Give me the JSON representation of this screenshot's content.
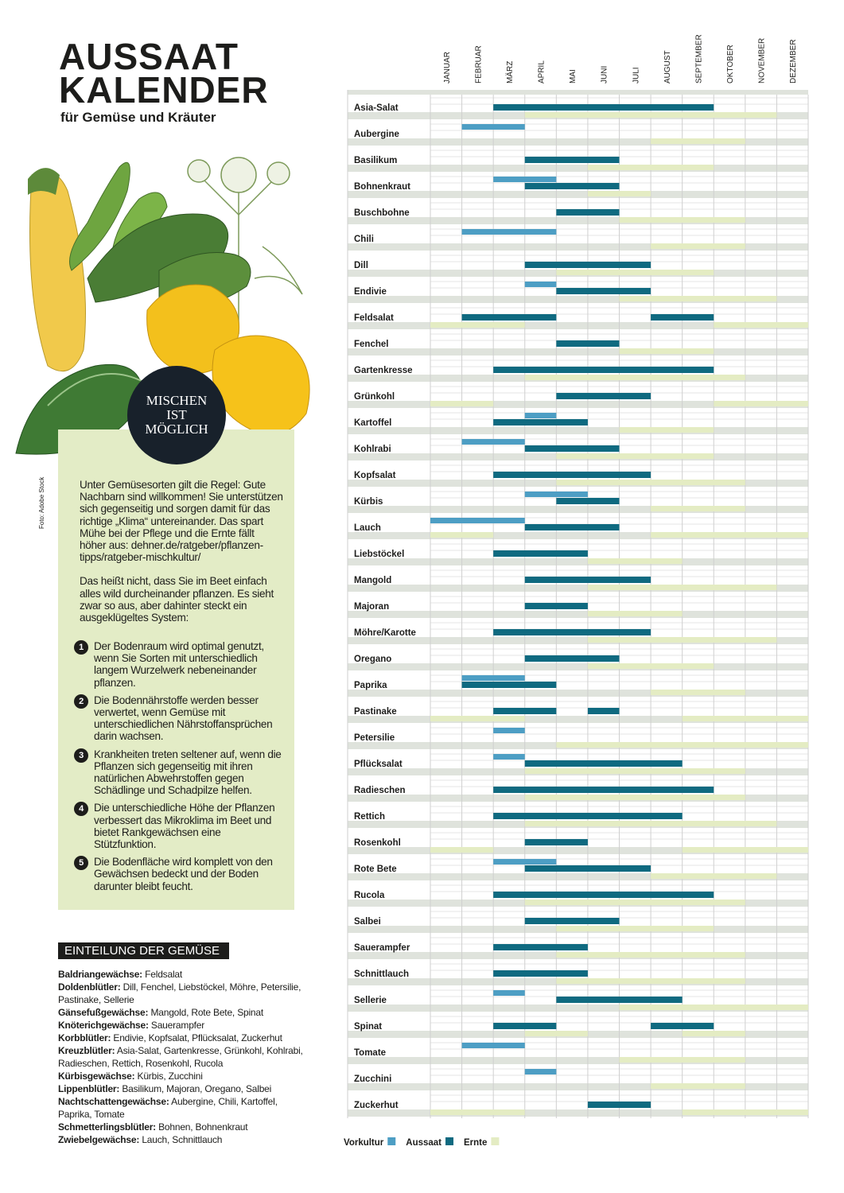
{
  "header": {
    "title_line1": "AUSSAAT",
    "title_line2": "KALENDER",
    "subtitle": "für Gemüse und Kräuter"
  },
  "badge": [
    "MISCHEN",
    "IST",
    "MÖGLICH"
  ],
  "photo_credit": "Foto: Adobe Stock",
  "intro": [
    "Unter Gemüsesorten gilt die Regel: Gute Nachbarn sind willkommen! Sie unterstützen sich gegenseitig und sorgen damit für das richtige „Klima“ untereinander. Das spart Mühe bei der Pflege und die Ernte fällt höher aus: dehner.de/ratgeber/pflanzen-tipps/ratgeber-mischkultur/",
    "Das heißt nicht, dass Sie im Beet einfach alles wild durcheinander pflanzen. Es sieht zwar so aus, aber dahinter steckt ein ausgeklügeltes System:"
  ],
  "list": [
    {
      "number": "1",
      "text": "Der Bodenraum wird optimal genutzt, wenn Sie Sorten mit unterschiedlich langem Wurzelwerk nebeneinander pflanzen."
    },
    {
      "number": "2",
      "text": "Die Bodennährstoffe werden besser verwertet, wenn Gemüse mit unterschiedlichen Nährstoffansprüchen darin wachsen."
    },
    {
      "number": "3",
      "text": "Krankheiten treten seltener auf, wenn die Pflanzen sich gegenseitig mit ihren natürlichen Abwehrstoffen gegen Schädlinge und Schadpilze helfen."
    },
    {
      "number": "4",
      "text": "Die unterschiedliche Höhe der Pflanzen verbessert das Mikroklima im Beet und bietet Rankgewächsen eine Stützfunktion."
    },
    {
      "number": "5",
      "text": "Die Bodenfläche wird komplett von den Gewächsen bedeckt und der Boden darunter bleibt feucht."
    }
  ],
  "classification": {
    "title": "EINTEILUNG DER GEMÜSE",
    "items": [
      {
        "family": "Baldriangewächse:",
        "members": "Feldsalat"
      },
      {
        "family": "Doldenblütler:",
        "members": "Dill, Fenchel, Liebstöckel, Möhre, Petersilie, Pastinake, Sellerie"
      },
      {
        "family": "Gänsefußgewächse:",
        "members": "Mangold, Rote Bete, Spinat"
      },
      {
        "family": "Knöterichgewächse:",
        "members": "Sauerampfer"
      },
      {
        "family": "Korbblütler:",
        "members": "Endivie, Kopfsalat, Pflücksalat, Zuckerhut"
      },
      {
        "family": "Kreuzblütler:",
        "members": "Asia-Salat, Gartenkresse, Grünkohl, Kohlrabi, Radieschen, Rettich, Rosenkohl, Rucola"
      },
      {
        "family": "Kürbisgewächse:",
        "members": "Kürbis, Zucchini"
      },
      {
        "family": "Lippenblütler:",
        "members": "Basilikum, Majoran, Oregano, Salbei"
      },
      {
        "family": "Nachtschattengewächse:",
        "members": "Aubergine, Chili, Kartoffel, Paprika, Tomate"
      },
      {
        "family": "Schmetterlingsblütler:",
        "members": "Bohnen, Bohnenkraut"
      },
      {
        "family": "Zwiebelgewächse:",
        "members": "Lauch, Schnittlauch"
      }
    ]
  },
  "calendar": {
    "months": [
      "JANUAR",
      "FEBRUAR",
      "MÄRZ",
      "APRIL",
      "MAI",
      "JUNI",
      "JULI",
      "AUGUST",
      "SEPTEMBER",
      "OKTOBER",
      "NOVEMBER",
      "DEZEMBER"
    ],
    "legend": [
      {
        "name": "Vorkultur",
        "color": "#4d9ec4"
      },
      {
        "name": "Aussaat",
        "color": "#0f6a80"
      },
      {
        "name": "Ernte",
        "color": "#e4ecc3"
      }
    ],
    "rows": [
      {
        "name": "Asia-Salat",
        "phases": [
          [],
          [
            [
              2,
              9
            ]
          ],
          [
            [
              3,
              11
            ]
          ]
        ]
      },
      {
        "name": "Aubergine",
        "phases": [
          [
            [
              1,
              3
            ]
          ],
          [],
          [
            [
              7,
              10
            ]
          ]
        ]
      },
      {
        "name": "Basilikum",
        "phases": [
          [],
          [
            [
              3,
              6
            ]
          ],
          [
            [
              5,
              9
            ]
          ]
        ]
      },
      {
        "name": "Bohnenkraut",
        "phases": [
          [
            [
              2,
              4
            ]
          ],
          [
            [
              3,
              6
            ]
          ],
          [
            [
              5,
              7
            ]
          ]
        ]
      },
      {
        "name": "Buschbohne",
        "phases": [
          [],
          [
            [
              4,
              6
            ]
          ],
          [
            [
              6,
              10
            ]
          ]
        ]
      },
      {
        "name": "Chili",
        "phases": [
          [
            [
              1,
              4
            ]
          ],
          [],
          [
            [
              7,
              10
            ]
          ]
        ]
      },
      {
        "name": "Dill",
        "phases": [
          [],
          [
            [
              3,
              7
            ]
          ],
          [
            [
              4,
              9
            ]
          ]
        ]
      },
      {
        "name": "Endivie",
        "phases": [
          [
            [
              3,
              4
            ]
          ],
          [
            [
              4,
              7
            ]
          ],
          [
            [
              6,
              11
            ]
          ]
        ]
      },
      {
        "name": "Feldsalat",
        "phases": [
          [],
          [
            [
              1,
              4
            ],
            [
              7,
              9
            ]
          ],
          [
            [
              0,
              3
            ],
            [
              9,
              12
            ]
          ]
        ]
      },
      {
        "name": "Fenchel",
        "phases": [
          [],
          [
            [
              4,
              6
            ]
          ],
          [
            [
              6,
              9
            ]
          ]
        ]
      },
      {
        "name": "Gartenkresse",
        "phases": [
          [],
          [
            [
              2,
              9
            ]
          ],
          [
            [
              3,
              10
            ]
          ]
        ]
      },
      {
        "name": "Grünkohl",
        "phases": [
          [],
          [
            [
              4,
              7
            ]
          ],
          [
            [
              0,
              2
            ],
            [
              9,
              12
            ]
          ]
        ]
      },
      {
        "name": "Kartoffel",
        "phases": [
          [
            [
              3,
              4
            ]
          ],
          [
            [
              2,
              5
            ]
          ],
          [
            [
              6,
              9
            ]
          ]
        ]
      },
      {
        "name": "Kohlrabi",
        "phases": [
          [
            [
              1,
              3
            ]
          ],
          [
            [
              3,
              6
            ]
          ],
          [
            [
              4,
              9
            ]
          ]
        ]
      },
      {
        "name": "Kopfsalat",
        "phases": [
          [],
          [
            [
              2,
              7
            ]
          ],
          [
            [
              4,
              10
            ]
          ]
        ]
      },
      {
        "name": "Kürbis",
        "phases": [
          [
            [
              3,
              5
            ]
          ],
          [
            [
              4,
              6
            ]
          ],
          [
            [
              7,
              10
            ]
          ]
        ]
      },
      {
        "name": "Lauch",
        "phases": [
          [
            [
              0,
              3
            ]
          ],
          [
            [
              3,
              6
            ]
          ],
          [
            [
              0,
              2
            ],
            [
              7,
              12
            ]
          ]
        ]
      },
      {
        "name": "Liebstöckel",
        "phases": [
          [],
          [
            [
              2,
              5
            ]
          ],
          [
            [
              5,
              8
            ]
          ]
        ]
      },
      {
        "name": "Mangold",
        "phases": [
          [],
          [
            [
              3,
              7
            ]
          ],
          [
            [
              5,
              11
            ]
          ]
        ]
      },
      {
        "name": "Majoran",
        "phases": [
          [],
          [
            [
              3,
              5
            ]
          ],
          [
            [
              5,
              8
            ]
          ]
        ]
      },
      {
        "name": "Möhre/Karotte",
        "phases": [
          [],
          [
            [
              2,
              7
            ]
          ],
          [
            [
              5,
              11
            ]
          ]
        ]
      },
      {
        "name": "Oregano",
        "phases": [
          [],
          [
            [
              3,
              6
            ]
          ],
          [
            [
              5,
              9
            ]
          ]
        ]
      },
      {
        "name": "Paprika",
        "phases": [
          [
            [
              1,
              3
            ]
          ],
          [
            [
              1,
              4
            ]
          ],
          [
            [
              7,
              10
            ]
          ]
        ]
      },
      {
        "name": "Pastinake",
        "phases": [
          [],
          [
            [
              2,
              4
            ],
            [
              5,
              6
            ]
          ],
          [
            [
              0,
              3
            ],
            [
              8,
              12
            ]
          ]
        ]
      },
      {
        "name": "Petersilie",
        "phases": [
          [
            [
              2,
              3
            ]
          ],
          [],
          [
            [
              4,
              12
            ]
          ]
        ]
      },
      {
        "name": "Pflücksalat",
        "phases": [
          [
            [
              2,
              3
            ]
          ],
          [
            [
              3,
              8
            ]
          ],
          [
            [
              3,
              10
            ]
          ]
        ]
      },
      {
        "name": "Radieschen",
        "phases": [
          [],
          [
            [
              2,
              9
            ]
          ],
          [
            [
              3,
              10
            ]
          ]
        ]
      },
      {
        "name": "Rettich",
        "phases": [
          [],
          [
            [
              2,
              8
            ]
          ],
          [
            [
              3,
              11
            ]
          ]
        ]
      },
      {
        "name": "Rosenkohl",
        "phases": [
          [],
          [
            [
              3,
              5
            ]
          ],
          [
            [
              0,
              2
            ],
            [
              8,
              12
            ]
          ]
        ]
      },
      {
        "name": "Rote Bete",
        "phases": [
          [
            [
              2,
              4
            ]
          ],
          [
            [
              3,
              7
            ]
          ],
          [
            [
              7,
              11
            ]
          ]
        ]
      },
      {
        "name": "Rucola",
        "phases": [
          [],
          [
            [
              2,
              9
            ]
          ],
          [
            [
              3,
              10
            ]
          ]
        ]
      },
      {
        "name": "Salbei",
        "phases": [
          [],
          [
            [
              3,
              6
            ]
          ],
          [
            [
              4,
              9
            ]
          ]
        ]
      },
      {
        "name": "Sauerampfer",
        "phases": [
          [],
          [
            [
              2,
              5
            ]
          ],
          [
            [
              4,
              10
            ]
          ]
        ]
      },
      {
        "name": "Schnittlauch",
        "phases": [
          [],
          [
            [
              2,
              5
            ]
          ],
          [
            [
              4,
              10
            ]
          ]
        ]
      },
      {
        "name": "Sellerie",
        "phases": [
          [
            [
              2,
              3
            ]
          ],
          [
            [
              4,
              8
            ]
          ],
          [
            [
              6,
              12
            ]
          ]
        ]
      },
      {
        "name": "Spinat",
        "phases": [
          [],
          [
            [
              2,
              4
            ],
            [
              7,
              9
            ]
          ],
          [
            [
              3,
              5
            ],
            [
              8,
              10
            ]
          ]
        ]
      },
      {
        "name": "Tomate",
        "phases": [
          [
            [
              1,
              3
            ]
          ],
          [],
          [
            [
              6,
              10
            ]
          ]
        ]
      },
      {
        "name": "Zucchini",
        "phases": [
          [
            [
              3,
              4
            ]
          ],
          [],
          [
            [
              7,
              10
            ]
          ]
        ]
      },
      {
        "name": "Zuckerhut",
        "phases": [
          [],
          [
            [
              5,
              7
            ]
          ],
          [
            [
              0,
              3
            ],
            [
              8,
              12
            ]
          ]
        ]
      }
    ]
  }
}
